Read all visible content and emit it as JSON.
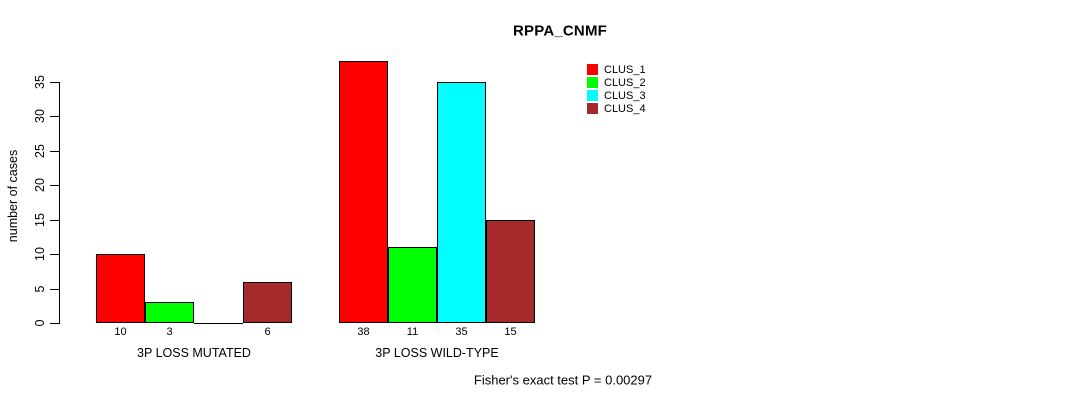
{
  "title": "RPPA_CNMF",
  "caption": "Fisher's exact test P = 0.00297",
  "chart_data": {
    "type": "bar",
    "title": "RPPA_CNMF",
    "xlabel": "",
    "ylabel": "number of cases",
    "annotation": "Fisher's exact test P = 0.00297",
    "groups": [
      "3P LOSS MUTATED",
      "3P LOSS WILD-TYPE"
    ],
    "series": [
      {
        "name": "CLUS_1",
        "color": "#ff0000",
        "values": [
          10,
          38
        ]
      },
      {
        "name": "CLUS_2",
        "color": "#00ff00",
        "values": [
          3,
          11
        ]
      },
      {
        "name": "CLUS_3",
        "color": "#00ffff",
        "values": [
          0,
          35
        ]
      },
      {
        "name": "CLUS_4",
        "color": "#a52a2a",
        "values": [
          6,
          15
        ]
      }
    ],
    "bar_labels": [
      [
        "10",
        "3",
        "",
        "6"
      ],
      [
        "38",
        "11",
        "35",
        "15"
      ]
    ],
    "yticks": [
      0,
      5,
      10,
      15,
      20,
      25,
      30,
      35
    ],
    "ylim": [
      0,
      38
    ],
    "grid": false,
    "legend_position": "top-right",
    "legend_items": [
      "CLUS_1",
      "CLUS_2",
      "CLUS_3",
      "CLUS_4"
    ],
    "axis_color": "#000000",
    "text_color": "#000000",
    "background_color": "#ffffff"
  }
}
